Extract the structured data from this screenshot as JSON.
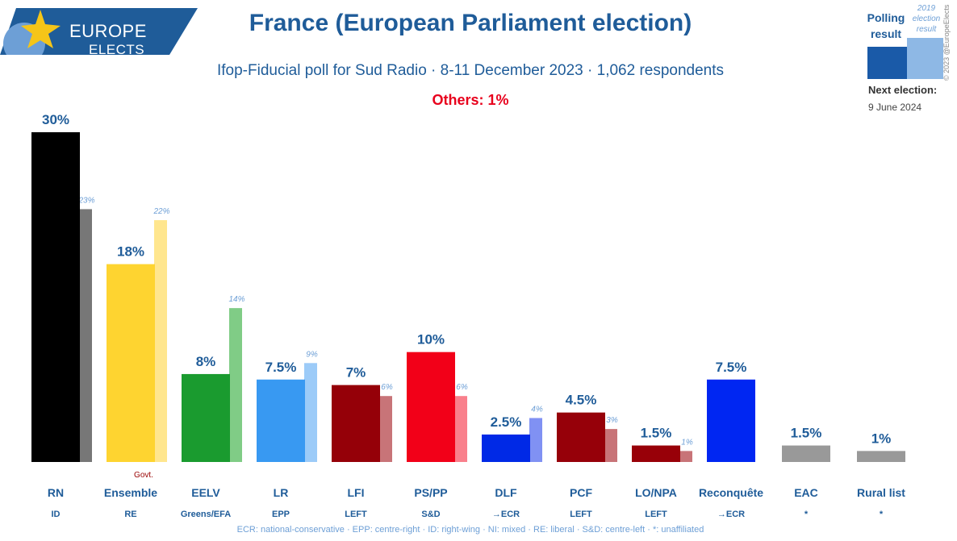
{
  "logo": {
    "line1": "EUROPE",
    "line2": "ELECTS"
  },
  "header": {
    "title": "France (European Parliament election)",
    "subtitle": "Ifop-Fiducial poll for Sud Radio · 8-11 December 2023 · 1,062 respondents",
    "others": "Others: 1%"
  },
  "legend": {
    "polling": "Polling result",
    "previous": "2019 election result",
    "next_label": "Next election:",
    "next_date": "9 June 2024",
    "copyright": "© 2023 @EuropeElects"
  },
  "footnote": "ECR: national-conservative · EPP: centre-right · ID: right-wing · NI: mixed · RE: liberal · S&D: centre-left · *: unaffiliated",
  "chart_data": {
    "type": "bar",
    "title": "France (European Parliament election)",
    "ylim": [
      0,
      30
    ],
    "govt_label": "Govt.",
    "categories": [
      "RN",
      "Ensemble",
      "EELV",
      "LR",
      "LFI",
      "PS/PP",
      "DLF",
      "PCF",
      "LO/NPA",
      "Reconquête",
      "EAC",
      "Rural list"
    ],
    "groups": [
      "ID",
      "RE",
      "Greens/EFA",
      "EPP",
      "LEFT",
      "S&D",
      "→ECR",
      "LEFT",
      "LEFT",
      "→ECR",
      "*",
      "*"
    ],
    "series": [
      {
        "name": "Polling result",
        "values": [
          30,
          18,
          8,
          7.5,
          7,
          10,
          2.5,
          4.5,
          1.5,
          7.5,
          1.5,
          1
        ],
        "labels": [
          "30%",
          "18%",
          "8%",
          "7.5%",
          "7%",
          "10%",
          "2.5%",
          "4.5%",
          "1.5%",
          "7.5%",
          "1.5%",
          "1%"
        ]
      },
      {
        "name": "2019 election result",
        "values": [
          23,
          22,
          14,
          9,
          6,
          6,
          4,
          3,
          1,
          null,
          null,
          null
        ],
        "labels": [
          "23%",
          "22%",
          "14%",
          "9%",
          "6%",
          "6%",
          "4%",
          "3%",
          "1%",
          null,
          null,
          null
        ]
      }
    ],
    "colors": [
      "#000000",
      "#fed430",
      "#1a9b2f",
      "#3899f2",
      "#950008",
      "#f20018",
      "#0029e6",
      "#960009",
      "#980008",
      "#0026f2",
      "#999999",
      "#999999"
    ],
    "colors_2019": [
      "#777777",
      "#ffe68e",
      "#80cc86",
      "#9ccbf8",
      "#c87478",
      "#f9808c",
      "#8091f3",
      "#c87478",
      "#c87478",
      null,
      null,
      null
    ],
    "govt_index": 1
  }
}
